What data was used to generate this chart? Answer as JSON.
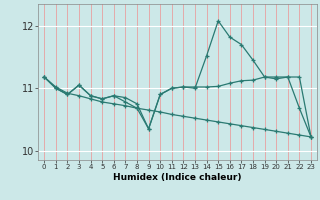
{
  "title": "",
  "xlabel": "Humidex (Indice chaleur)",
  "bg_color": "#cce8e8",
  "grid_color_v": "#e8a0a0",
  "grid_color_h": "#ffffff",
  "line_color": "#2a7a72",
  "xlim": [
    -0.5,
    23.5
  ],
  "ylim": [
    9.85,
    12.35
  ],
  "yticks": [
    10,
    11,
    12
  ],
  "xticks": [
    0,
    1,
    2,
    3,
    4,
    5,
    6,
    7,
    8,
    9,
    10,
    11,
    12,
    13,
    14,
    15,
    16,
    17,
    18,
    19,
    20,
    21,
    22,
    23
  ],
  "series1_x": [
    0,
    1,
    2,
    3,
    4,
    5,
    6,
    7,
    8,
    9,
    10,
    11,
    12,
    13,
    14,
    15,
    16,
    17,
    18,
    19,
    20,
    21,
    22,
    23
  ],
  "series1_y": [
    11.18,
    11.02,
    10.92,
    10.88,
    10.83,
    10.78,
    10.75,
    10.72,
    10.68,
    10.65,
    10.62,
    10.58,
    10.55,
    10.52,
    10.49,
    10.46,
    10.43,
    10.4,
    10.37,
    10.34,
    10.31,
    10.28,
    10.25,
    10.22
  ],
  "series2_x": [
    0,
    1,
    2,
    3,
    4,
    5,
    6,
    7,
    8,
    9,
    10,
    11,
    12,
    13,
    14,
    15,
    16,
    17,
    18,
    19,
    20,
    21,
    22,
    23
  ],
  "series2_y": [
    11.18,
    11.0,
    10.9,
    11.05,
    10.88,
    10.83,
    10.88,
    10.85,
    10.75,
    10.35,
    10.9,
    11.0,
    11.02,
    11.02,
    11.02,
    11.03,
    11.08,
    11.12,
    11.13,
    11.18,
    11.18,
    11.18,
    11.18,
    10.22
  ],
  "series3_x": [
    0,
    1,
    2,
    3,
    4,
    5,
    6,
    7,
    8,
    9,
    10,
    11,
    12,
    13,
    14,
    15,
    16,
    17,
    18,
    19,
    20,
    21,
    22,
    23
  ],
  "series3_y": [
    11.18,
    11.0,
    10.9,
    11.05,
    10.88,
    10.83,
    10.88,
    10.78,
    10.68,
    10.35,
    10.9,
    11.0,
    11.02,
    11.0,
    11.52,
    12.08,
    11.82,
    11.7,
    11.45,
    11.18,
    11.15,
    11.18,
    10.68,
    10.22
  ]
}
